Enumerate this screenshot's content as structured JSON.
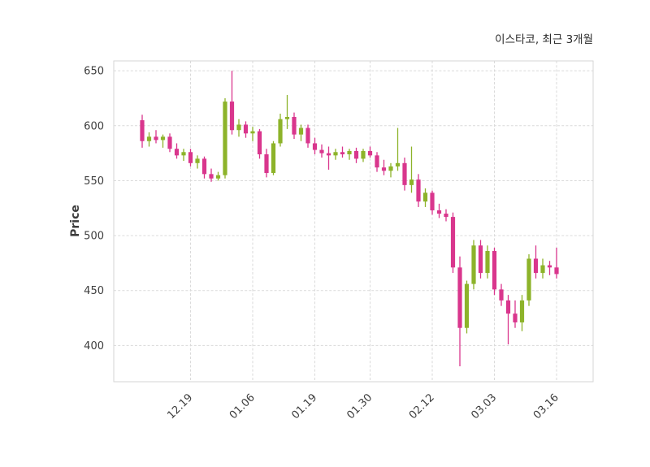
{
  "header": {
    "title": "이스타코, 최근 3개월"
  },
  "chart_data": {
    "type": "candlestick",
    "title": "이스타코, 최근 3개월",
    "ylabel": "Price",
    "yticks": [
      400,
      450,
      500,
      550,
      600,
      650
    ],
    "ylim": [
      367,
      659
    ],
    "xtick_labels": [
      "12.19",
      "01.06",
      "01.19",
      "01.30",
      "02.12",
      "03.03",
      "03.16"
    ],
    "xtick_indices": [
      7,
      16,
      25,
      33,
      42,
      51,
      60
    ],
    "grid": "on",
    "colors": {
      "up": "#8db32a",
      "down": "#d9368d",
      "grid": "#dadada",
      "text": "#3d3d3d"
    },
    "candles_format": "open,high,low,close",
    "candles": [
      [
        605,
        610,
        580,
        586
      ],
      [
        586,
        594,
        581,
        590
      ],
      [
        590,
        596,
        584,
        587
      ],
      [
        587,
        592,
        580,
        590
      ],
      [
        590,
        593,
        576,
        579
      ],
      [
        579,
        584,
        570,
        573
      ],
      [
        573,
        579,
        568,
        576
      ],
      [
        576,
        579,
        563,
        566
      ],
      [
        566,
        573,
        561,
        570
      ],
      [
        570,
        572,
        552,
        556
      ],
      [
        556,
        561,
        549,
        552
      ],
      [
        552,
        558,
        550,
        555
      ],
      [
        555,
        625,
        552,
        622
      ],
      [
        622,
        650,
        592,
        596
      ],
      [
        596,
        606,
        590,
        601
      ],
      [
        601,
        604,
        589,
        593
      ],
      [
        593,
        599,
        586,
        595
      ],
      [
        595,
        597,
        570,
        574
      ],
      [
        574,
        579,
        553,
        557
      ],
      [
        557,
        586,
        555,
        584
      ],
      [
        584,
        611,
        581,
        606
      ],
      [
        606,
        628,
        597,
        608
      ],
      [
        608,
        612,
        588,
        592
      ],
      [
        592,
        601,
        586,
        598
      ],
      [
        598,
        601,
        580,
        584
      ],
      [
        584,
        589,
        574,
        578
      ],
      [
        578,
        583,
        571,
        575
      ],
      [
        575,
        581,
        560,
        573
      ],
      [
        573,
        579,
        569,
        576
      ],
      [
        576,
        581,
        571,
        574
      ],
      [
        574,
        579,
        569,
        577
      ],
      [
        577,
        580,
        566,
        570
      ],
      [
        570,
        579,
        567,
        577
      ],
      [
        577,
        581,
        571,
        573
      ],
      [
        573,
        576,
        558,
        562
      ],
      [
        562,
        569,
        555,
        559
      ],
      [
        559,
        566,
        553,
        563
      ],
      [
        563,
        598,
        559,
        566
      ],
      [
        566,
        571,
        541,
        546
      ],
      [
        546,
        581,
        539,
        551
      ],
      [
        551,
        556,
        526,
        531
      ],
      [
        531,
        543,
        526,
        539
      ],
      [
        539,
        541,
        519,
        523
      ],
      [
        523,
        529,
        516,
        520
      ],
      [
        520,
        524,
        513,
        517
      ],
      [
        517,
        521,
        466,
        471
      ],
      [
        471,
        481,
        381,
        416
      ],
      [
        416,
        459,
        411,
        456
      ],
      [
        456,
        496,
        451,
        491
      ],
      [
        491,
        496,
        461,
        466
      ],
      [
        466,
        491,
        461,
        486
      ],
      [
        486,
        489,
        446,
        451
      ],
      [
        451,
        456,
        436,
        441
      ],
      [
        441,
        446,
        401,
        429
      ],
      [
        429,
        441,
        416,
        421
      ],
      [
        421,
        446,
        413,
        441
      ],
      [
        441,
        483,
        436,
        479
      ],
      [
        479,
        491,
        461,
        466
      ],
      [
        466,
        479,
        461,
        473
      ],
      [
        473,
        477,
        464,
        471
      ],
      [
        471,
        489,
        461,
        465
      ]
    ]
  }
}
